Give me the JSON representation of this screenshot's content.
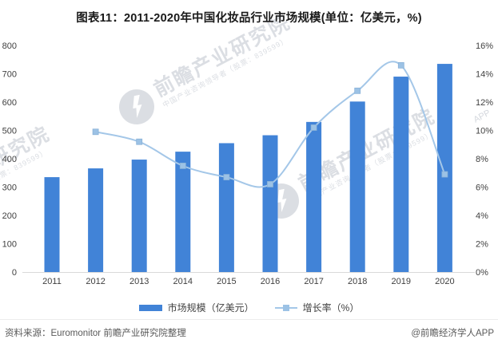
{
  "page": {
    "title": "图表11：2011-2020年中国化妆品行业市场规模(单位：亿美元，%)"
  },
  "chart_data": {
    "type": "bar",
    "title": "图表11：2011-2020年中国化妆品行业市场规模(单位：亿美元，%)",
    "categories": [
      "2011",
      "2012",
      "2013",
      "2014",
      "2015",
      "2016",
      "2017",
      "2018",
      "2019",
      "2020"
    ],
    "series": [
      {
        "name": "市场规模（亿美元）",
        "type": "bar",
        "axis": "left",
        "values": [
          335,
          366,
          397,
          425,
          455,
          483,
          530,
          602,
          690,
          735
        ]
      },
      {
        "name": "增长率（%）",
        "type": "line",
        "axis": "right",
        "x_start_index": 1,
        "values": [
          9.9,
          9.2,
          7.5,
          6.7,
          6.2,
          10.2,
          12.8,
          14.6,
          6.9
        ]
      }
    ],
    "left_axis": {
      "min": 0,
      "max": 800,
      "ticks": [
        "0",
        "100",
        "200",
        "300",
        "400",
        "500",
        "600",
        "700",
        "800"
      ]
    },
    "right_axis": {
      "min": 0,
      "max": 16,
      "ticks": [
        "0%",
        "2%",
        "4%",
        "6%",
        "8%",
        "10%",
        "12%",
        "14%",
        "16%"
      ]
    },
    "grid": false,
    "legend_position": "bottom"
  },
  "legend": {
    "bar_label": "市场规模（亿美元）",
    "line_label": "增长率（%）"
  },
  "footer": {
    "source": "资料来源：Euromonitor 前瞻产业研究院整理",
    "credit": "@前瞻经济学人APP"
  },
  "watermark": {
    "text": "前瞻产业研究院",
    "subtext": "中国产业咨询领导者（股票：839599）",
    "corner": "APP"
  },
  "colors": {
    "bar": "#4183D7",
    "line": "#A4C7E8",
    "marker": "#9CC2E5",
    "marker_border": "#8AB2D8",
    "axis_text": "#404040",
    "title": "#1A1A1A",
    "footer_text": "#595959",
    "axis_line": "#D9D9D9"
  }
}
